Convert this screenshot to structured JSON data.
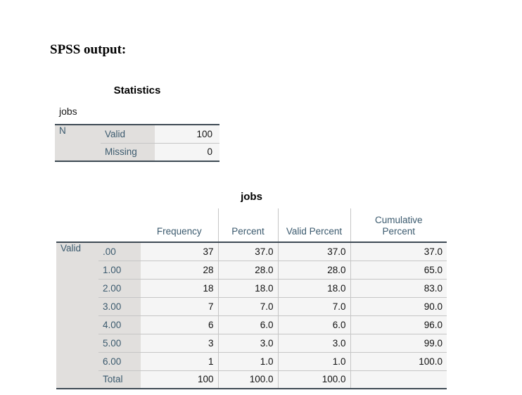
{
  "page": {
    "heading": "SPSS output:"
  },
  "colors": {
    "label_text": "#3b5a6e",
    "data_text": "#111111",
    "label_background": "#e1dfdd",
    "cell_background": "#f5f5f5",
    "grid_line": "#c6c6c6",
    "frame_line": "#3e4a54"
  },
  "statistics_table": {
    "title": "Statistics",
    "caption": "jobs",
    "rows": [
      {
        "group": "N",
        "label": "Valid",
        "value": "100"
      },
      {
        "group": "",
        "label": "Missing",
        "value": "0"
      }
    ]
  },
  "frequency_table": {
    "title": "jobs",
    "row_group": "Valid",
    "columns": [
      "Frequency",
      "Percent",
      "Valid Percent",
      "Cumulative Percent"
    ],
    "rows": [
      {
        "label": ".00",
        "frequency": "37",
        "percent": "37.0",
        "valid_percent": "37.0",
        "cumulative_percent": "37.0"
      },
      {
        "label": "1.00",
        "frequency": "28",
        "percent": "28.0",
        "valid_percent": "28.0",
        "cumulative_percent": "65.0"
      },
      {
        "label": "2.00",
        "frequency": "18",
        "percent": "18.0",
        "valid_percent": "18.0",
        "cumulative_percent": "83.0"
      },
      {
        "label": "3.00",
        "frequency": "7",
        "percent": "7.0",
        "valid_percent": "7.0",
        "cumulative_percent": "90.0"
      },
      {
        "label": "4.00",
        "frequency": "6",
        "percent": "6.0",
        "valid_percent": "6.0",
        "cumulative_percent": "96.0"
      },
      {
        "label": "5.00",
        "frequency": "3",
        "percent": "3.0",
        "valid_percent": "3.0",
        "cumulative_percent": "99.0"
      },
      {
        "label": "6.00",
        "frequency": "1",
        "percent": "1.0",
        "valid_percent": "1.0",
        "cumulative_percent": "100.0"
      },
      {
        "label": "Total",
        "frequency": "100",
        "percent": "100.0",
        "valid_percent": "100.0",
        "cumulative_percent": ""
      }
    ]
  }
}
